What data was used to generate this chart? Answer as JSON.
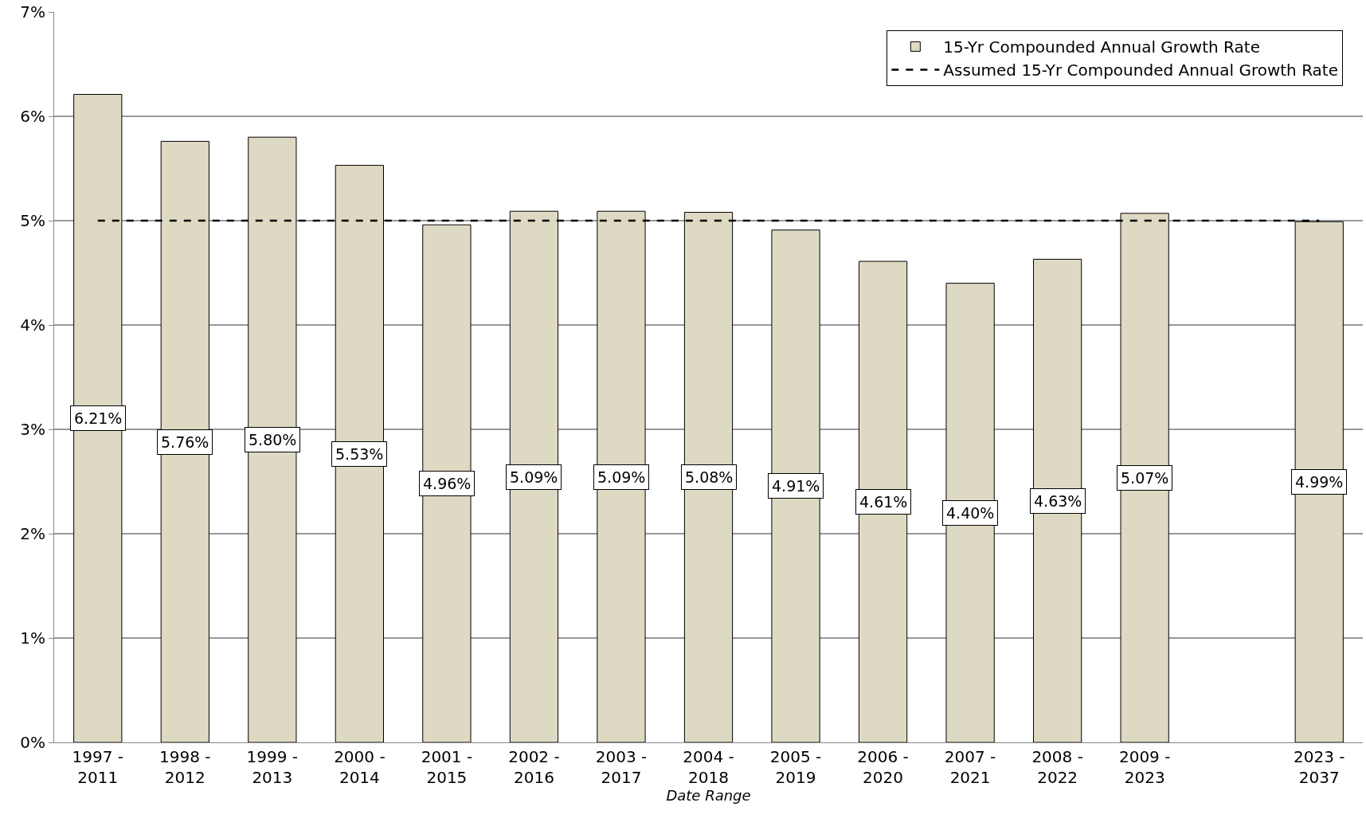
{
  "chart_data": {
    "type": "bar",
    "xlabel": "Date Range",
    "categories": [
      "1997 -\n2011",
      "1998 -\n2012",
      "1999 -\n2013",
      "2000 -\n2014",
      "2001 -\n2015",
      "2002 -\n2016",
      "2003 -\n2017",
      "2004 -\n2018",
      "2005 -\n2019",
      "2006 -\n2020",
      "2007 -\n2021",
      "2008 -\n2022",
      "2009 -\n2023",
      null,
      "2023 -\n2037"
    ],
    "series": [
      {
        "name": "15-Yr Compounded Annual Growth Rate",
        "color": "#ddd9c3",
        "values": [
          6.21,
          5.76,
          5.8,
          5.53,
          4.96,
          5.09,
          5.09,
          5.08,
          4.91,
          4.61,
          4.4,
          4.63,
          5.07,
          null,
          4.99
        ],
        "value_labels": [
          "6.21%",
          "5.76%",
          "5.80%",
          "5.53%",
          "4.96%",
          "5.09%",
          "5.09%",
          "5.08%",
          "4.91%",
          "4.61%",
          "4.40%",
          "4.63%",
          "5.07%",
          null,
          "4.99%"
        ]
      },
      {
        "name": "Assumed 15-Yr Compounded Annual Growth Rate",
        "type": "line",
        "color": "#000000",
        "line_style": "dashed",
        "marker": "none",
        "values": [
          5,
          5,
          5,
          5,
          5,
          5,
          5,
          5,
          5,
          5,
          5,
          5,
          5,
          5,
          5
        ]
      }
    ],
    "ylim": [
      0,
      7
    ],
    "yticks": [
      {
        "value": 0,
        "label": "0%"
      },
      {
        "value": 1,
        "label": "1%"
      },
      {
        "value": 2,
        "label": "2%"
      },
      {
        "value": 3,
        "label": "3%"
      },
      {
        "value": 4,
        "label": "4%"
      },
      {
        "value": 5,
        "label": "5%"
      },
      {
        "value": 6,
        "label": "6%"
      },
      {
        "value": 7,
        "label": "7%"
      }
    ],
    "grid": "y",
    "legend": "top right"
  }
}
